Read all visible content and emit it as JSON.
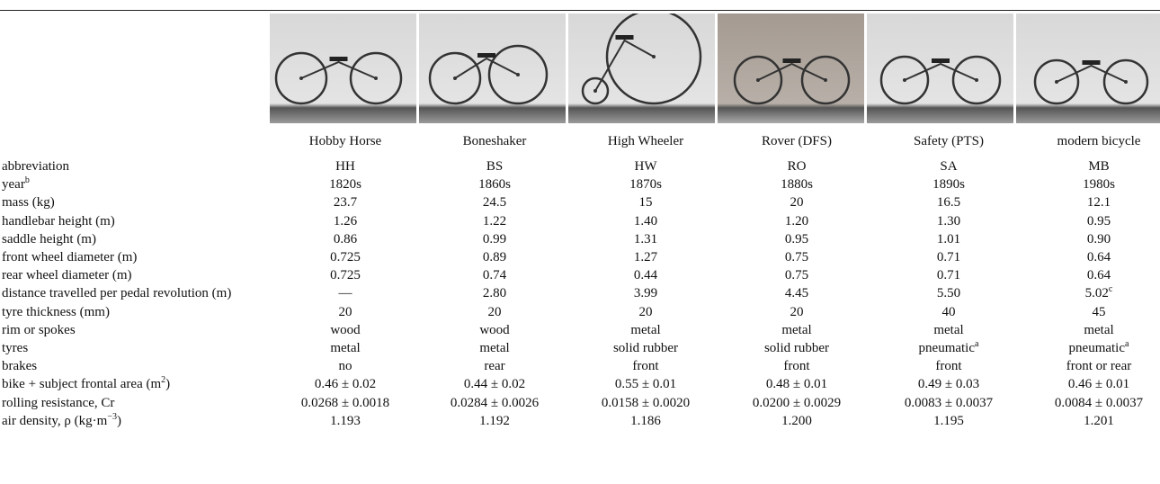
{
  "header": {
    "columns": [
      "Hobby Horse",
      "Boneshaker",
      "High Wheeler",
      "Rover (DFS)",
      "Safety (PTS)",
      "modern bicycle"
    ]
  },
  "table": {
    "rows": [
      {
        "label": "abbreviation",
        "cells": [
          "HH",
          "BS",
          "HW",
          "RO",
          "SA",
          "MB"
        ]
      },
      {
        "label": {
          "text": "year",
          "sup": "b"
        },
        "cells": [
          "1820s",
          "1860s",
          "1870s",
          "1880s",
          "1890s",
          "1980s"
        ]
      },
      {
        "label": "mass (kg)",
        "cells": [
          "23.7",
          "24.5",
          "15",
          "20",
          "16.5",
          "12.1"
        ]
      },
      {
        "label": "handlebar height (m)",
        "cells": [
          "1.26",
          "1.22",
          "1.40",
          "1.20",
          "1.30",
          "0.95"
        ]
      },
      {
        "label": "saddle height (m)",
        "cells": [
          "0.86",
          "0.99",
          "1.31",
          "0.95",
          "1.01",
          "0.90"
        ]
      },
      {
        "label": "front wheel diameter (m)",
        "cells": [
          "0.725",
          "0.89",
          "1.27",
          "0.75",
          "0.71",
          "0.64"
        ]
      },
      {
        "label": "rear wheel diameter (m)",
        "cells": [
          "0.725",
          "0.74",
          "0.44",
          "0.75",
          "0.71",
          "0.64"
        ]
      },
      {
        "label": "distance travelled per pedal revolution (m)",
        "cells": [
          "—",
          "2.80",
          "3.99",
          "4.45",
          "5.50",
          {
            "text": "5.02",
            "sup": "c"
          }
        ]
      },
      {
        "label": "tyre thickness (mm)",
        "cells": [
          "20",
          "20",
          "20",
          "20",
          "40",
          "45"
        ]
      },
      {
        "label": "rim or spokes",
        "cells": [
          "wood",
          "wood",
          "metal",
          "metal",
          "metal",
          "metal"
        ]
      },
      {
        "label": "tyres",
        "cells": [
          "metal",
          "metal",
          "solid rubber",
          "solid rubber",
          {
            "text": "pneumatic",
            "sup": "a"
          },
          {
            "text": "pneumatic",
            "sup": "a"
          }
        ]
      },
      {
        "label": "brakes",
        "cells": [
          "no",
          "rear",
          "front",
          "front",
          "front",
          "front or rear"
        ]
      },
      {
        "label": {
          "text": "bike + subject frontal area (m",
          "sup": "2",
          "tail": ")"
        },
        "cells": [
          "0.46 ± 0.02",
          "0.44 ± 0.02",
          "0.55 ± 0.01",
          "0.48 ± 0.01",
          "0.49 ± 0.03",
          "0.46 ± 0.01"
        ]
      },
      {
        "label": "rolling resistance, Cr",
        "cells": [
          "0.0268 ± 0.0018",
          "0.0284 ± 0.0026",
          "0.0158 ± 0.0020",
          "0.0200 ± 0.0029",
          "0.0083 ± 0.0037",
          "0.0084 ± 0.0037"
        ]
      },
      {
        "label": {
          "text": "air density, ρ (kg·m",
          "sup": "−3",
          "tail": ")"
        },
        "cells": [
          "1.193",
          "1.192",
          "1.186",
          "1.200",
          "1.195",
          "1.201"
        ]
      }
    ]
  }
}
